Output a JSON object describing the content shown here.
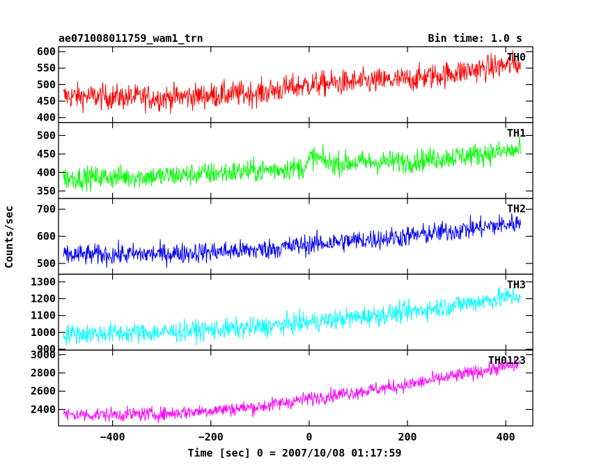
{
  "header": {
    "title": "ae071008011759_wam1_trn",
    "bin_time": "Bin time: 1.0 s"
  },
  "axes": {
    "xlabel": "Time [sec] 0 = 2007/10/08 01:17:59",
    "ylabel": "Counts/sec"
  },
  "chart_data": {
    "type": "line",
    "x_range": [
      -510,
      455
    ],
    "x_ticks": [
      -400,
      -200,
      0,
      200,
      400
    ],
    "x_step": 1.0,
    "data_x_range": [
      -500,
      430
    ],
    "grid": false,
    "panels": [
      {
        "name": "TH0",
        "color": "#ff0000",
        "ylim": [
          385,
          615
        ],
        "yticks": [
          400,
          450,
          500,
          550,
          600
        ],
        "trend": [
          [
            -500,
            465
          ],
          [
            -300,
            460
          ],
          [
            -100,
            475
          ],
          [
            0,
            500
          ],
          [
            200,
            515
          ],
          [
            430,
            565
          ]
        ],
        "noise_amplitude": 35
      },
      {
        "name": "TH1",
        "color": "#00ff00",
        "ylim": [
          330,
          535
        ],
        "yticks": [
          350,
          400,
          450,
          500
        ],
        "trend": [
          [
            -500,
            385
          ],
          [
            -300,
            390
          ],
          [
            -100,
            405
          ],
          [
            -5,
            415
          ],
          [
            5,
            445
          ],
          [
            40,
            425
          ],
          [
            200,
            430
          ],
          [
            430,
            460
          ]
        ],
        "noise_amplitude": 28
      },
      {
        "name": "TH2",
        "color": "#0000ff",
        "ylim": [
          460,
          740
        ],
        "yticks": [
          500,
          600,
          700
        ],
        "trend": [
          [
            -500,
            530
          ],
          [
            -300,
            535
          ],
          [
            -100,
            550
          ],
          [
            0,
            570
          ],
          [
            200,
            600
          ],
          [
            430,
            650
          ]
        ],
        "noise_amplitude": 35
      },
      {
        "name": "TH3",
        "color": "#00ffff",
        "ylim": [
          895,
          1345
        ],
        "yticks": [
          900,
          1000,
          1100,
          1200,
          1300
        ],
        "trend": [
          [
            -500,
            990
          ],
          [
            -300,
            1000
          ],
          [
            -100,
            1030
          ],
          [
            0,
            1060
          ],
          [
            200,
            1120
          ],
          [
            430,
            1220
          ]
        ],
        "noise_amplitude": 55
      },
      {
        "name": "TH0123",
        "color": "#ff00ff",
        "ylim": [
          2220,
          3050
        ],
        "yticks": [
          2400,
          2600,
          2800,
          3000
        ],
        "trend": [
          [
            -500,
            2340
          ],
          [
            -300,
            2350
          ],
          [
            -100,
            2430
          ],
          [
            0,
            2520
          ],
          [
            200,
            2670
          ],
          [
            430,
            2900
          ]
        ],
        "noise_amplitude": 70
      }
    ]
  }
}
